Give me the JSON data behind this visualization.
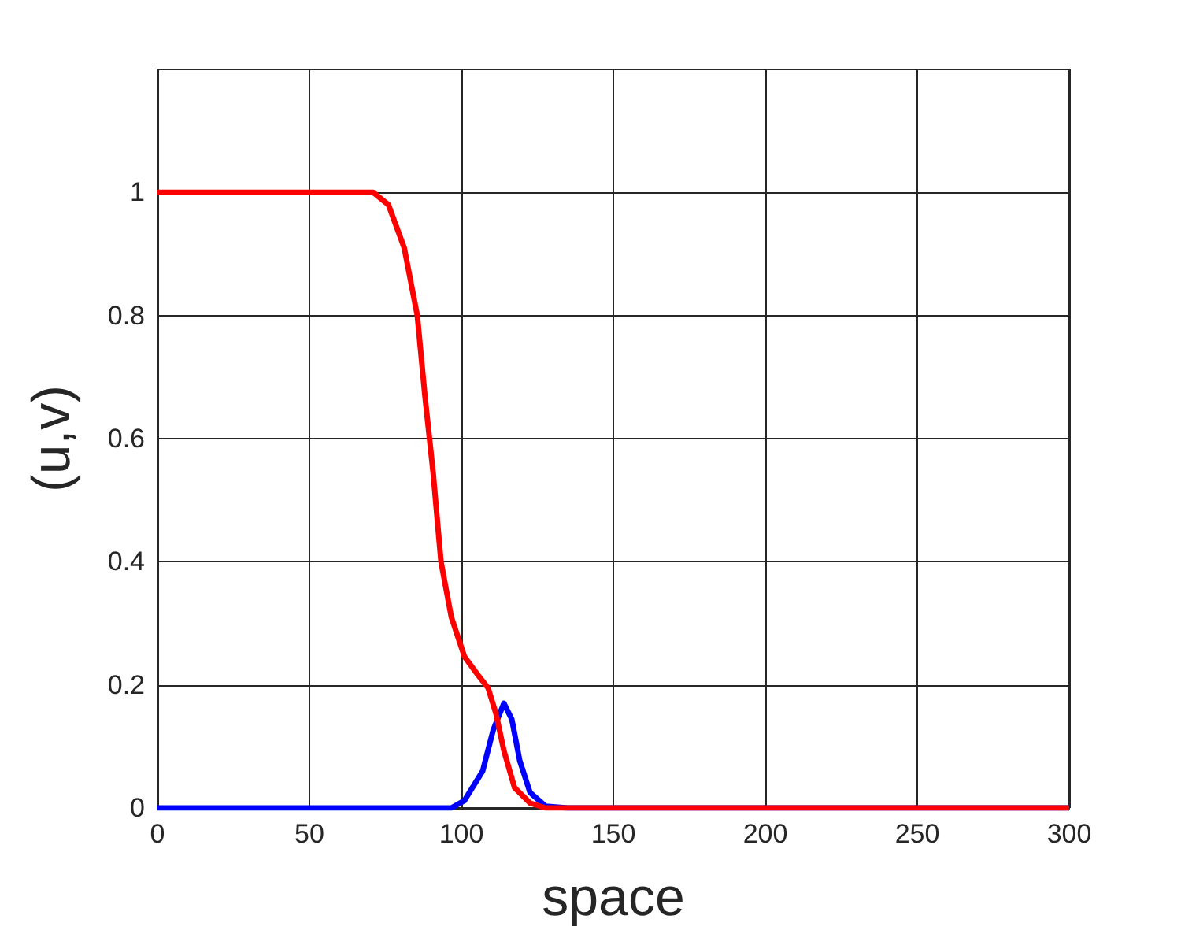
{
  "chart_data": {
    "type": "line",
    "xlabel": "space",
    "ylabel": "(u,v)",
    "xlim": [
      0,
      300
    ],
    "xticks": [
      0,
      50,
      100,
      150,
      200,
      250,
      300
    ],
    "ylim": [
      0,
      1.2
    ],
    "yticks": [
      0,
      0.2,
      0.4,
      0.6,
      0.8,
      1
    ],
    "grid": true,
    "marker": "none",
    "line_style": "solid",
    "series": [
      {
        "color": "#0000ff",
        "x": [
          0,
          50,
          96.7,
          101,
          107,
          110.5,
          114,
          116.6,
          119.2,
          122.6,
          127.7,
          135,
          200,
          300
        ],
        "values": [
          0,
          0,
          0,
          0.012,
          0.06,
          0.127,
          0.17,
          0.144,
          0.077,
          0.025,
          0.003,
          0,
          0,
          0
        ]
      },
      {
        "color": "#ff0000",
        "x": [
          0,
          50,
          71,
          76,
          81.2,
          85.5,
          88,
          90.7,
          93.3,
          96.7,
          101,
          105.3,
          108.8,
          111.4,
          114,
          117.5,
          122.6,
          127.7,
          200,
          300
        ],
        "values": [
          1,
          1,
          1,
          0.98,
          0.91,
          0.8,
          0.67,
          0.545,
          0.4,
          0.31,
          0.246,
          0.217,
          0.195,
          0.153,
          0.093,
          0.033,
          0.008,
          0,
          0,
          0
        ]
      }
    ]
  }
}
